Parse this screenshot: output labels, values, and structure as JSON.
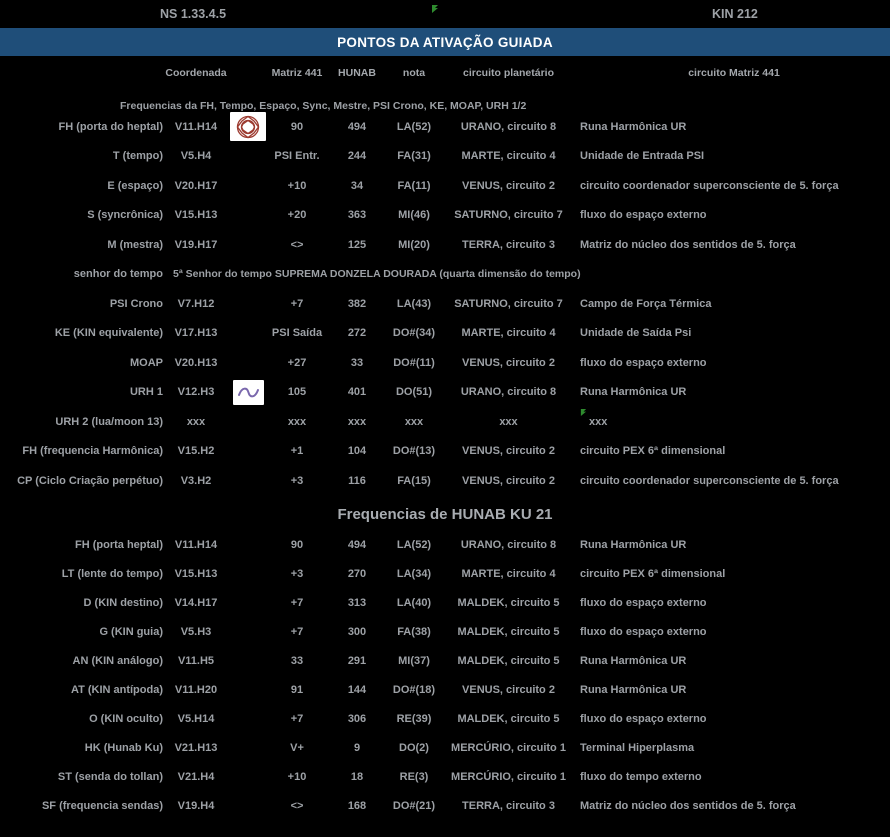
{
  "header": {
    "ns_date": "NS 1.33.4.5",
    "kin": "KIN 212",
    "title": "PONTOS DA ATIVAÇÃO GUIADA"
  },
  "columns": {
    "coordenada": "Coordenada",
    "matriz": "Matriz 441",
    "hunab": "HUNAB",
    "nota": "nota",
    "circuito_planetario": "circuito planetário",
    "circuito_matriz": "circuito Matriz 441"
  },
  "colors": {
    "banner_blue": "#1f4e79",
    "mandala_red": "#9c3a2f",
    "wave_purple": "#7a68ad",
    "marker_green": "#2e8b2e",
    "text_gray": "#9da1a6"
  },
  "icons": {
    "mandala": "red-mandala-icon",
    "wave": "purple-wave-icon",
    "flag": "green-flag-marker"
  },
  "sections": [
    {
      "title": "Frequencias da FH, Tempo, Espaço, Sync, Mestre, PSI Crono, KE, MOAP, URH 1/2",
      "rows": [
        {
          "label": "FH (porta do heptal)",
          "coordenada": "V11.H14",
          "icon": "mandala",
          "matriz": "90",
          "hunab": "494",
          "nota": "LA(52)",
          "planeta": "URANO, circuito 8",
          "circuito": "Runa Harmônica UR"
        },
        {
          "label": "T (tempo)",
          "coordenada": "V5.H4",
          "icon": null,
          "matriz": "PSI Entr.",
          "hunab": "244",
          "nota": "FA(31)",
          "planeta": "MARTE, circuito 4",
          "circuito": "Unidade de Entrada PSI"
        },
        {
          "label": "E (espaço)",
          "coordenada": "V20.H17",
          "icon": null,
          "matriz": "+10",
          "hunab": "34",
          "nota": "FA(11)",
          "planeta": "VENUS, circuito 2",
          "circuito": "circuito coordenador superconsciente de 5. força"
        },
        {
          "label": "S (syncrônica)",
          "coordenada": "V15.H13",
          "icon": null,
          "matriz": "+20",
          "hunab": "363",
          "nota": "MI(46)",
          "planeta": "SATURNO, circuito 7",
          "circuito": "fluxo do espaço externo"
        },
        {
          "label": "M (mestra)",
          "coordenada": "V19.H17",
          "icon": null,
          "matriz": "<>",
          "hunab": "125",
          "nota": "MI(20)",
          "planeta": "TERRA, circuito 3",
          "circuito": "Matriz do núcleo dos sentidos de 5. força"
        },
        {
          "label": "senhor do tempo",
          "span": "5ª Senhor do tempo SUPREMA DONZELA DOURADA (quarta dimensão do tempo)"
        },
        {
          "label": "PSI Crono",
          "coordenada": "V7.H12",
          "icon": null,
          "matriz": "+7",
          "hunab": "382",
          "nota": "LA(43)",
          "planeta": "SATURNO, circuito 7",
          "circuito": "Campo de Força Térmica"
        },
        {
          "label": "KE (KIN equivalente)",
          "coordenada": "V17.H13",
          "icon": null,
          "matriz": "PSI Saída",
          "hunab": "272",
          "nota": "DO#(34)",
          "planeta": "MARTE, circuito 4",
          "circuito": "Unidade de Saída Psi"
        },
        {
          "label": "MOAP",
          "coordenada": "V20.H13",
          "icon": null,
          "matriz": "+27",
          "hunab": "33",
          "nota": "DO#(11)",
          "planeta": "VENUS, circuito 2",
          "circuito": "fluxo do espaço externo"
        },
        {
          "label": "URH 1",
          "coordenada": "V12.H3",
          "icon": "wave",
          "matriz": "105",
          "hunab": "401",
          "nota": "DO(51)",
          "planeta": "URANO, circuito 8",
          "circuito": "Runa Harmônica UR"
        },
        {
          "label": "URH 2 (lua/moon 13)",
          "coordenada": "xxx",
          "icon": null,
          "matriz": "xxx",
          "hunab": "xxx",
          "nota": "xxx",
          "planeta": "xxx",
          "circuito": "xxx",
          "marker": true
        },
        {
          "label": "FH (frequencia Harmônica)",
          "coordenada": "V15.H2",
          "icon": null,
          "matriz": "+1",
          "hunab": "104",
          "nota": "DO#(13)",
          "planeta": "VENUS, circuito 2",
          "circuito": "circuito PEX 6ª dimensional"
        },
        {
          "label": "CP (Ciclo Criação perpétuo)",
          "coordenada": "V3.H2",
          "icon": null,
          "matriz": "+3",
          "hunab": "116",
          "nota": "FA(15)",
          "planeta": "VENUS, circuito 2",
          "circuito": "circuito coordenador superconsciente de 5. força"
        }
      ]
    },
    {
      "title": "Frequencias de HUNAB KU 21",
      "rows": [
        {
          "label": "FH (porta heptal)",
          "coordenada": "V11.H14",
          "icon": null,
          "matriz": "90",
          "hunab": "494",
          "nota": "LA(52)",
          "planeta": "URANO, circuito 8",
          "circuito": "Runa Harmônica UR"
        },
        {
          "label": "LT (lente do tempo)",
          "coordenada": "V15.H13",
          "icon": null,
          "matriz": "+3",
          "hunab": "270",
          "nota": "LA(34)",
          "planeta": "MARTE, circuito 4",
          "circuito": "circuito PEX 6ª dimensional"
        },
        {
          "label": "D (KIN destino)",
          "coordenada": "V14.H17",
          "icon": null,
          "matriz": "+7",
          "hunab": "313",
          "nota": "LA(40)",
          "planeta": "MALDEK, circuito 5",
          "circuito": "fluxo do espaço externo"
        },
        {
          "label": "G (KIN guia)",
          "coordenada": "V5.H3",
          "icon": null,
          "matriz": "+7",
          "hunab": "300",
          "nota": "FA(38)",
          "planeta": "MALDEK, circuito 5",
          "circuito": "fluxo do espaço externo"
        },
        {
          "label": "AN (KIN análogo)",
          "coordenada": "V11.H5",
          "icon": null,
          "matriz": "33",
          "hunab": "291",
          "nota": "MI(37)",
          "planeta": "MALDEK, circuito 5",
          "circuito": "Runa Harmônica UR"
        },
        {
          "label": "AT (KIN antípoda)",
          "coordenada": "V11.H20",
          "icon": null,
          "matriz": "91",
          "hunab": "144",
          "nota": "DO#(18)",
          "planeta": "VENUS, circuito 2",
          "circuito": "Runa Harmônica UR"
        },
        {
          "label": "O (KIN oculto)",
          "coordenada": "V5.H14",
          "icon": null,
          "matriz": "+7",
          "hunab": "306",
          "nota": "RE(39)",
          "planeta": "MALDEK, circuito 5",
          "circuito": "fluxo do espaço externo"
        },
        {
          "label": "HK (Hunab Ku)",
          "coordenada": "V21.H13",
          "icon": null,
          "matriz": "V+",
          "hunab": "9",
          "nota": "DO(2)",
          "planeta": "MERCÚRIO, circuito 1",
          "circuito": "Terminal Hiperplasma"
        },
        {
          "label": "ST (senda do tollan)",
          "coordenada": "V21.H4",
          "icon": null,
          "matriz": "+10",
          "hunab": "18",
          "nota": "RE(3)",
          "planeta": "MERCÚRIO, circuito 1",
          "circuito": "fluxo do tempo externo"
        },
        {
          "label": "SF (frequencia sendas)",
          "coordenada": "V19.H4",
          "icon": null,
          "matriz": "<>",
          "hunab": "168",
          "nota": "DO#(21)",
          "planeta": "TERRA, circuito 3",
          "circuito": "Matriz do núcleo dos sentidos de 5. força"
        }
      ]
    }
  ]
}
